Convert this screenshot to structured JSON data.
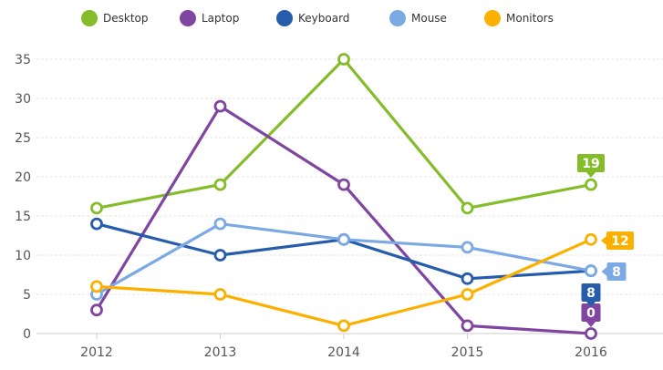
{
  "chart_data": {
    "type": "line",
    "x": [
      "2012",
      "2013",
      "2014",
      "2015",
      "2016"
    ],
    "series": [
      {
        "name": "Desktop",
        "color": "#84bd29",
        "values": [
          16,
          19,
          35,
          16,
          19
        ],
        "end_label": "19"
      },
      {
        "name": "Laptop",
        "color": "#7f45a1",
        "values": [
          3,
          29,
          19,
          1,
          0
        ],
        "end_label": "0"
      },
      {
        "name": "Keyboard",
        "color": "#255cab",
        "values": [
          14,
          10,
          12,
          7,
          8
        ],
        "end_label": "8"
      },
      {
        "name": "Mouse",
        "color": "#7aa9e3",
        "values": [
          5,
          14,
          12,
          11,
          8
        ],
        "end_label": "8"
      },
      {
        "name": "Monitors",
        "color": "#fbb000",
        "values": [
          6,
          5,
          1,
          5,
          12
        ],
        "end_label": "12"
      }
    ],
    "yticks": [
      0,
      5,
      10,
      15,
      20,
      25,
      30,
      35
    ],
    "ylim": [
      0,
      35
    ],
    "grid": true,
    "legend": "top"
  }
}
